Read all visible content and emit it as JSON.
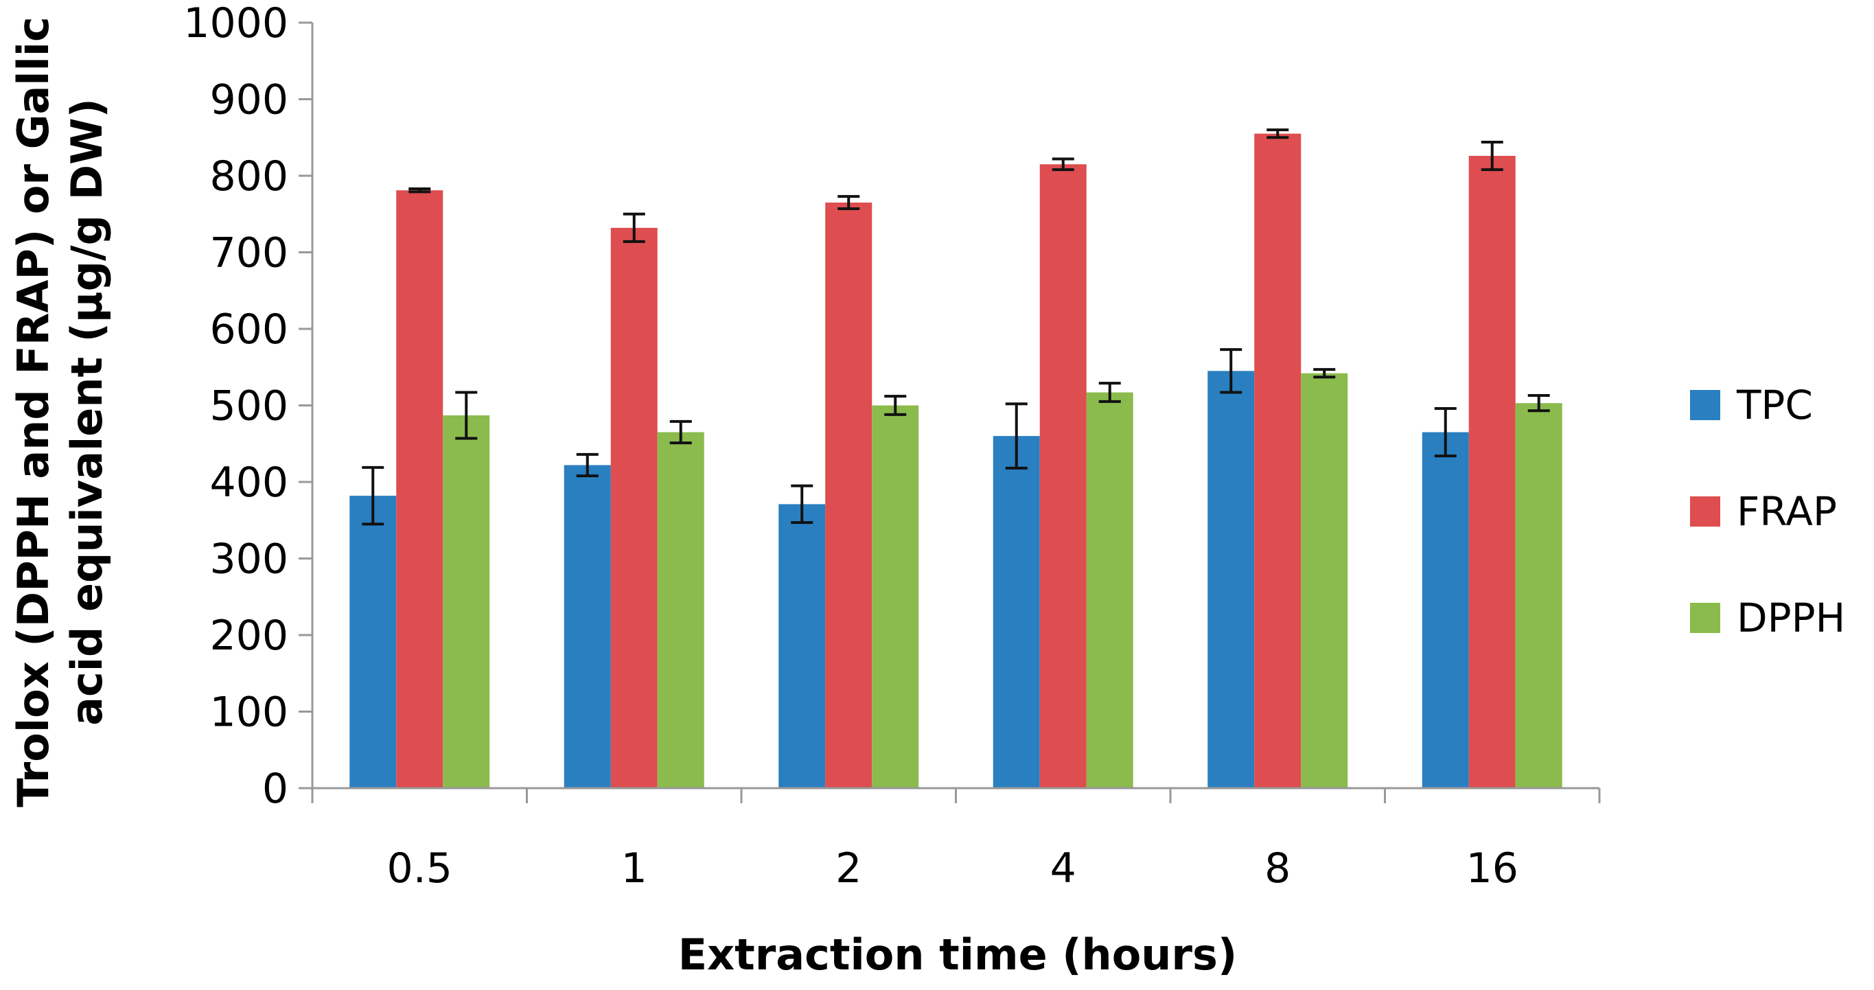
{
  "chart_data": {
    "type": "bar",
    "title": "",
    "xlabel": "Extraction time (hours)",
    "ylabel_lines": [
      "Trolox (DPPH and FRAP) or Gallic",
      "acid equivalent (µg/g DW)"
    ],
    "categories": [
      "0.5",
      "1",
      "2",
      "4",
      "8",
      "16"
    ],
    "ylim": [
      0,
      1000
    ],
    "yticks": [
      0,
      100,
      200,
      300,
      400,
      500,
      600,
      700,
      800,
      900,
      1000
    ],
    "grid": false,
    "legend_position": "right",
    "series": [
      {
        "name": "TPC",
        "color": "#2a7fc1",
        "values": [
          382,
          422,
          371,
          460,
          545,
          465
        ],
        "errors": [
          37,
          14,
          24,
          42,
          28,
          31
        ]
      },
      {
        "name": "FRAP",
        "color": "#de4d4f",
        "values": [
          781,
          732,
          765,
          815,
          855,
          826
        ],
        "errors": [
          2,
          18,
          8,
          7,
          5,
          18
        ]
      },
      {
        "name": "DPPH",
        "color": "#8bbb4d",
        "values": [
          487,
          465,
          500,
          517,
          542,
          503
        ],
        "errors": [
          30,
          14,
          12,
          12,
          5,
          10
        ]
      }
    ]
  }
}
